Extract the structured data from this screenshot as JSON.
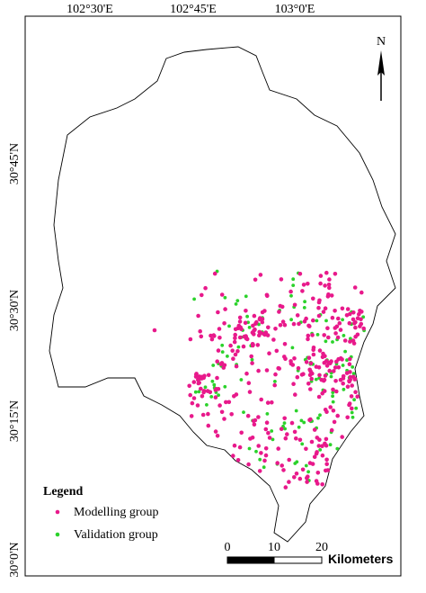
{
  "map": {
    "graticule": {
      "top": [
        "102°30'E",
        "102°45'E",
        "103°0'E"
      ],
      "left": [
        "30°45'N",
        "30°30'N",
        "30°15'N",
        "30°0'N"
      ]
    },
    "north_arrow": "N",
    "legend": {
      "title": "Legend",
      "items": [
        {
          "label": "Modelling group",
          "color": "#e8198b"
        },
        {
          "label": "Validation group",
          "color": "#2bd22b"
        }
      ]
    },
    "scale_bar": {
      "ticks": [
        0,
        10,
        20
      ],
      "unit": "Kilometers"
    }
  }
}
